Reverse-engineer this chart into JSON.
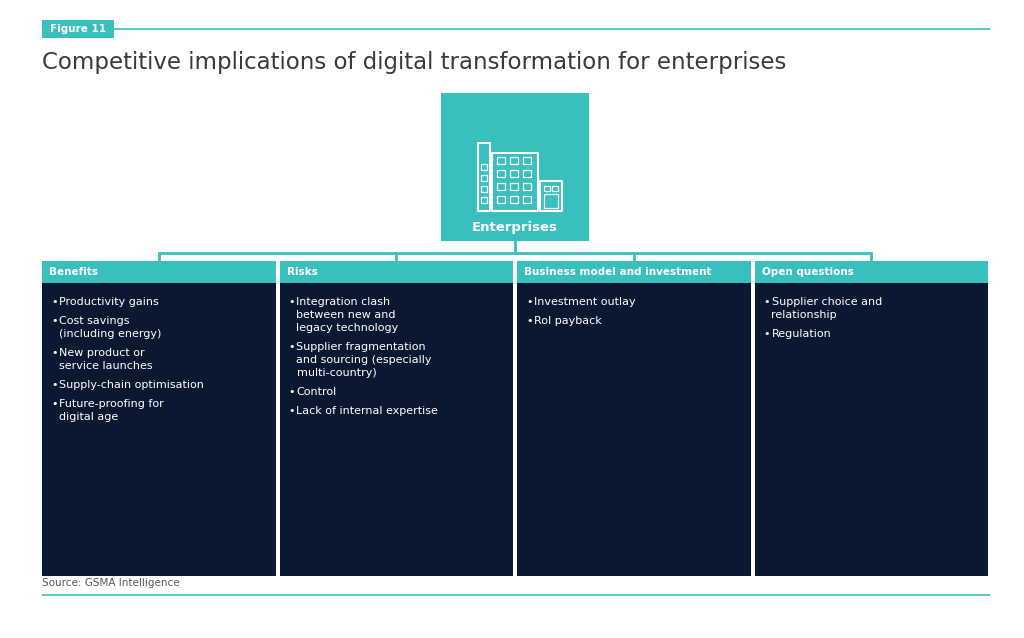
{
  "title": "Competitive implications of digital transformation for enterprises",
  "figure_label": "Figure 11",
  "source": "Source: GSMA Intelligence",
  "center_label": "Enterprises",
  "background_color": "#ffffff",
  "teal_color": "#3abfbf",
  "dark_blue": "#0a1931",
  "columns": [
    {
      "title": "Benefits",
      "items": [
        "Productivity gains",
        "Cost savings\n(including energy)",
        "New product or\nservice launches",
        "Supply-chain optimisation",
        "Future-proofing for\ndigital age"
      ]
    },
    {
      "title": "Risks",
      "items": [
        "Integration clash\nbetween new and\nlegacy technology",
        "Supplier fragmentation\nand sourcing (especially\nmulti-country)",
        "Control",
        "Lack of internal expertise"
      ]
    },
    {
      "title": "Business model and investment",
      "items": [
        "Investment outlay",
        "RoI payback"
      ]
    },
    {
      "title": "Open questions",
      "items": [
        "Supplier choice and\nrelationship",
        "Regulation"
      ]
    }
  ]
}
